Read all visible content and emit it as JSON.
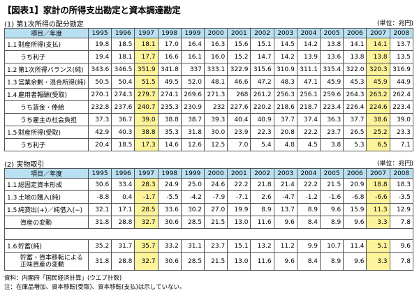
{
  "title": "【図表1】家計の所得支出勘定と資本調達勘定",
  "unit": "(単位：兆円)",
  "highlight_color": "#fcf39a",
  "header_color": "#b9dff2",
  "table1": {
    "section_label": "(1) 第1次所得の配分勘定",
    "header_label": "項目／年度",
    "years": [
      "1995",
      "1996",
      "1997",
      "1998",
      "1999",
      "2000",
      "2001",
      "2002",
      "2003",
      "2004",
      "2005",
      "2006",
      "2007",
      "2008"
    ],
    "rows": [
      {
        "no": "1.1",
        "label": "財産所得(支払)",
        "values": [
          "19.8",
          "18.5",
          "18.1",
          "17.0",
          "16.4",
          "16.3",
          "15.6",
          "15.1",
          "14.5",
          "14.2",
          "13.8",
          "14.1",
          "14.1",
          "13.7"
        ]
      },
      {
        "no": "",
        "label": "うち利子",
        "values": [
          "19.4",
          "18.1",
          "17.7",
          "16.6",
          "16.1",
          "16.0",
          "15.2",
          "14.7",
          "14.2",
          "13.9",
          "13.6",
          "13.8",
          "13.8",
          "13.5"
        ]
      },
      {
        "no": "1.2",
        "label": "第1次所得バランス(純)",
        "values": [
          "343.6",
          "346.5",
          "351.9",
          "341.8",
          "337",
          "333.1",
          "322.9",
          "315.6",
          "310.9",
          "311.1",
          "315.4",
          "322.0",
          "320.3",
          "316.9"
        ]
      },
      {
        "no": "1.3",
        "label": "営業余剰・混合所得(純)",
        "values": [
          "50.5",
          "50.4",
          "51.5",
          "49.5",
          "52.0",
          "48.1",
          "46.6",
          "47.2",
          "48.3",
          "47.1",
          "45.9",
          "45.3",
          "45.9",
          "44.9"
        ]
      },
      {
        "no": "1.4",
        "label": "雇用者報酬(受取)",
        "values": [
          "270.1",
          "274.3",
          "279.7",
          "274.1",
          "269.6",
          "271.3",
          "268",
          "261.2",
          "256.3",
          "256.1",
          "259.6",
          "264.3",
          "263.2",
          "262.4"
        ]
      },
      {
        "no": "",
        "label": "うち賃金・俸給",
        "values": [
          "232.8",
          "237.6",
          "240.7",
          "235.3",
          "230.9",
          "232",
          "227.6",
          "220.2",
          "218.6",
          "218.7",
          "223.4",
          "226.4",
          "224.6",
          "223.4"
        ]
      },
      {
        "no": "",
        "label": "うち雇主の社会負担",
        "values": [
          "37.3",
          "36.7",
          "39.0",
          "38.8",
          "38.7",
          "39.3",
          "40.4",
          "40.9",
          "37.7",
          "37.4",
          "36.3",
          "37.7",
          "38.6",
          "39.0"
        ]
      },
      {
        "no": "1.5",
        "label": "財産所得(受取)",
        "values": [
          "42.9",
          "40.3",
          "38.8",
          "35.3",
          "31.8",
          "30.0",
          "23.9",
          "22.3",
          "20.8",
          "22.2",
          "23.7",
          "26.5",
          "25.2",
          "23.3"
        ]
      },
      {
        "no": "",
        "label": "うち利子",
        "values": [
          "20.4",
          "18.5",
          "17.3",
          "14.6",
          "12.6",
          "12.5",
          "7.0",
          "5.4",
          "4.8",
          "4.5",
          "3.8",
          "5.3",
          "6.5",
          "7.1"
        ]
      }
    ]
  },
  "table2": {
    "section_label": "(2) 実物取引",
    "header_label": "項目／年度",
    "years": [
      "1995",
      "1996",
      "1997",
      "1998",
      "1999",
      "2000",
      "2001",
      "2002",
      "2003",
      "2004",
      "2005",
      "2006",
      "2007",
      "2008"
    ],
    "rows": [
      {
        "no": "1.1",
        "label": "総固定資本形成",
        "values": [
          "30.6",
          "33.4",
          "28.3",
          "24.9",
          "25.0",
          "24.6",
          "22.2",
          "21.8",
          "21.4",
          "22.2",
          "21.5",
          "20.9",
          "18.8",
          "18.3"
        ]
      },
      {
        "no": "1.3",
        "label": "土地の購入(純)",
        "values": [
          "-8.8",
          "0.4",
          "-1.7",
          "-5.5",
          "-4.2",
          "-7.9",
          "-7.1",
          "2.6",
          "-4.7",
          "-1.2",
          "-1.6",
          "-6.8",
          "-6.6",
          "-3.5"
        ]
      },
      {
        "no": "1.5",
        "label": "純貸出(+)／純借入(−)",
        "values": [
          "32.1",
          "17.1",
          "28.5",
          "33.6",
          "30.2",
          "27.0",
          "19.9",
          "8.9",
          "13.7",
          "8.9",
          "9.6",
          "15.9",
          "11.3",
          "12.9"
        ]
      },
      {
        "no": "",
        "label": "資産の変動",
        "values": [
          "31.8",
          "28.8",
          "32.7",
          "30.6",
          "28.5",
          "21.5",
          "13.0",
          "11.6",
          "9.6",
          "8.4",
          "8.9",
          "9.6",
          "3.3",
          "7.8"
        ]
      },
      {
        "no": "1.6",
        "label": "貯蓄(純)",
        "values": [
          "35.2",
          "31.7",
          "35.7",
          "33.2",
          "31.1",
          "23.7",
          "15.1",
          "13.2",
          "11.2",
          "9.9",
          "10.7",
          "11.4",
          "5.1",
          "9.6"
        ]
      },
      {
        "no": "",
        "label": "貯蓄・資本移転による",
        "label2": "正味資産の変動",
        "values": [
          "31.8",
          "28.8",
          "32.7",
          "30.6",
          "28.5",
          "21.5",
          "13.0",
          "11.6",
          "9.6",
          "8.4",
          "8.9",
          "9.6",
          "3.3",
          "7.8"
        ]
      }
    ]
  },
  "notes": {
    "source": "資料：内閣府「国民経済計算」(ウエブ計数)",
    "footnote": "注：在庫品増加、資本移転(受取)、資本移転(支払)は示していない。"
  }
}
